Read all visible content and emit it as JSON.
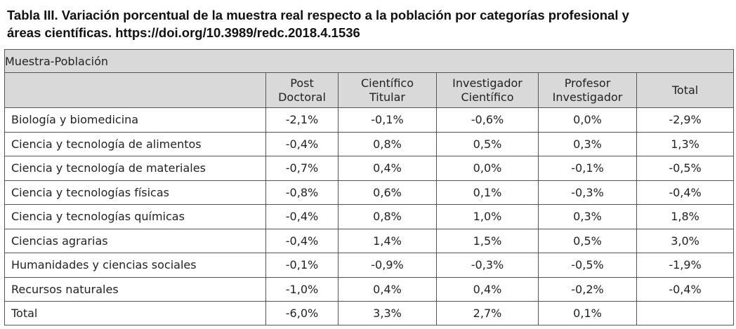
{
  "title": {
    "line1": "Tabla III. Variación porcentual de la muestra real respecto a la población por categorías profesional y",
    "line2": "áreas científicas. https://doi.org/10.3989/redc.2018.4.1536"
  },
  "table": {
    "caption": "Muestra-Población",
    "headers": [
      {
        "line1": "",
        "line2": ""
      },
      {
        "line1": "Post",
        "line2": "Doctoral"
      },
      {
        "line1": "Científico",
        "line2": "Titular"
      },
      {
        "line1": "Investigador",
        "line2": "Científico"
      },
      {
        "line1": "Profesor",
        "line2": "Investigador"
      },
      {
        "line1": "Total",
        "line2": ""
      }
    ],
    "rows": [
      {
        "label": "Biología y biomedicina",
        "cells": [
          "-2,1%",
          "-0,1%",
          "-0,6%",
          "0,0%",
          "-2,9%"
        ]
      },
      {
        "label": "Ciencia y tecnología de alimentos",
        "cells": [
          "-0,4%",
          "0,8%",
          "0,5%",
          "0,3%",
          "1,3%"
        ]
      },
      {
        "label": "Ciencia y tecnología de materiales",
        "cells": [
          "-0,7%",
          "0,4%",
          "0,0%",
          "-0,1%",
          "-0,5%"
        ]
      },
      {
        "label": "Ciencia y tecnologías físicas",
        "cells": [
          "-0,8%",
          "0,6%",
          "0,1%",
          "-0,3%",
          "-0,4%"
        ]
      },
      {
        "label": "Ciencia y tecnologías químicas",
        "cells": [
          "-0,4%",
          "0,8%",
          "1,0%",
          "0,3%",
          "1,8%"
        ]
      },
      {
        "label": "Ciencias agrarias",
        "cells": [
          "-0,4%",
          "1,4%",
          "1,5%",
          "0,5%",
          "3,0%"
        ]
      },
      {
        "label": "Humanidades y ciencias sociales",
        "cells": [
          "-0,1%",
          "-0,9%",
          "-0,3%",
          "-0,5%",
          "-1,9%"
        ]
      },
      {
        "label": "Recursos naturales",
        "cells": [
          "-1,0%",
          "0,4%",
          "0,4%",
          "-0,2%",
          "-0,4%"
        ]
      },
      {
        "label": "Total",
        "cells": [
          "-6,0%",
          "3,3%",
          "2,7%",
          "0,1%",
          ""
        ]
      }
    ]
  }
}
